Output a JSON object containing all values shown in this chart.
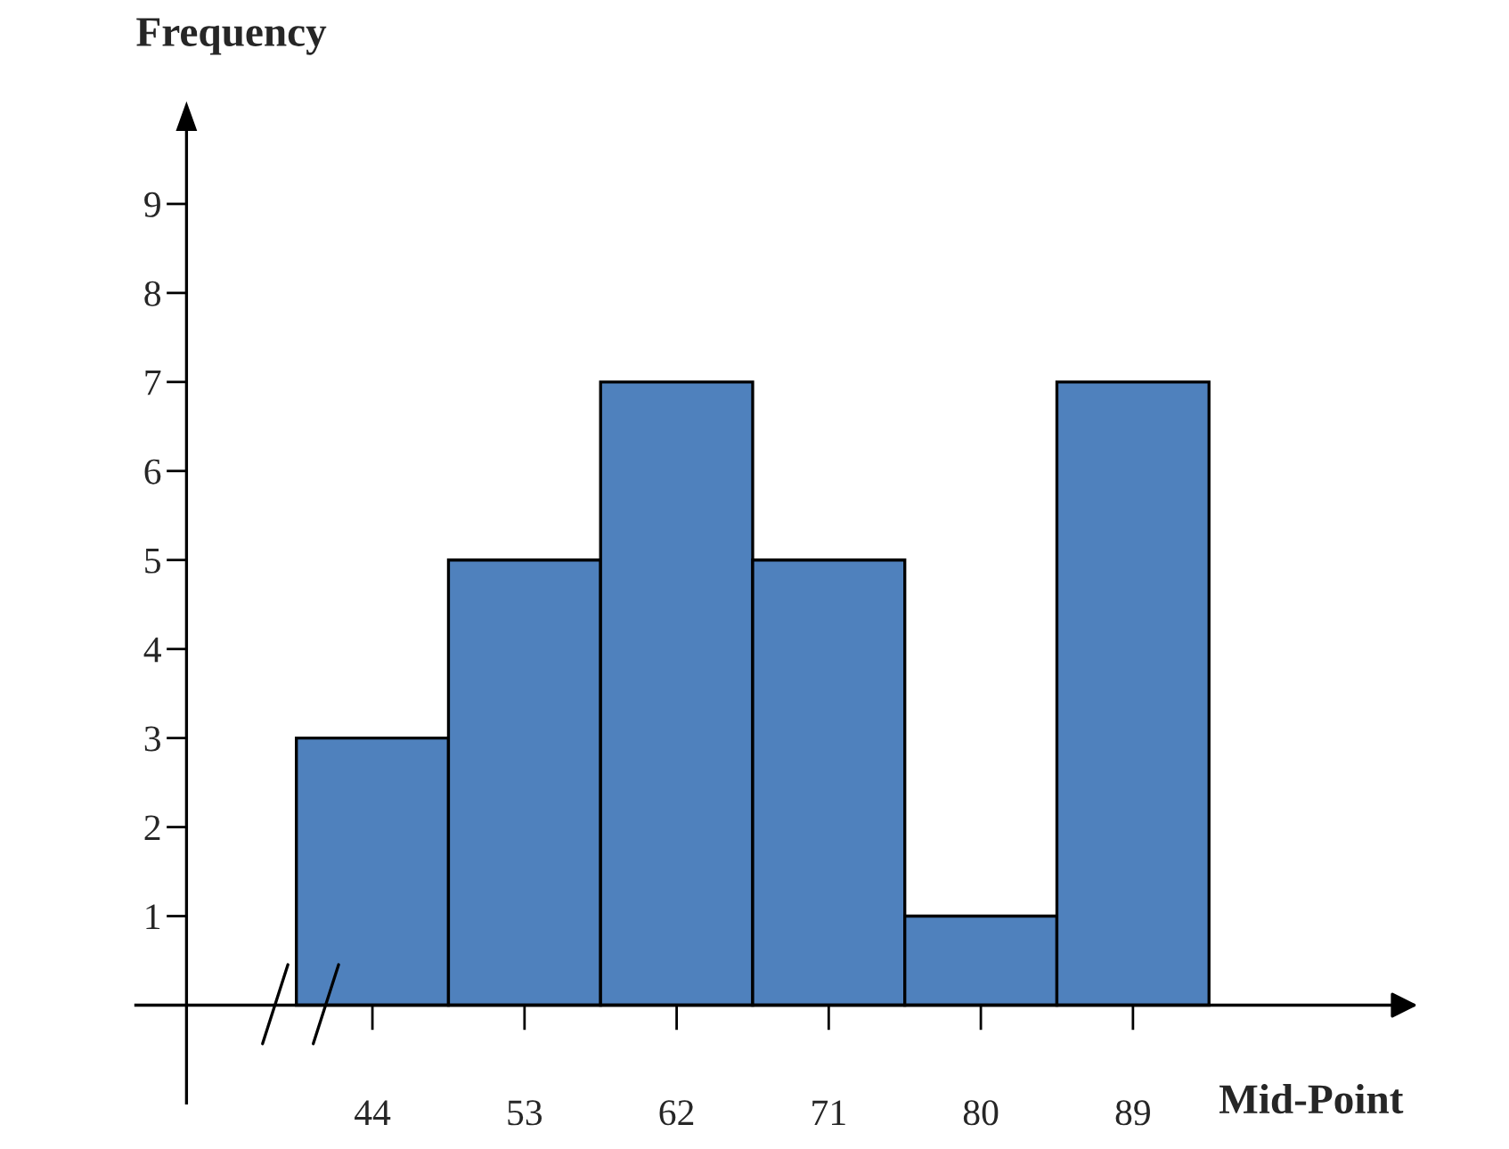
{
  "chart_data": {
    "type": "histogram",
    "xlabel": "Mid-Point",
    "ylabel": "Frequency",
    "bins": [
      39.5,
      48.5,
      57.5,
      66.5,
      75.5,
      84.5,
      93.5
    ],
    "values": [
      3,
      5,
      7,
      5,
      1,
      7
    ],
    "color": "#4f81bd",
    "xlim": [
      30,
      105
    ],
    "xticks": [
      44,
      53,
      62,
      71,
      80,
      89
    ],
    "ylim": [
      -1.1,
      10
    ],
    "yticks": [
      1,
      2,
      3,
      4,
      5,
      6,
      7,
      8,
      9
    ],
    "grid": false
  }
}
